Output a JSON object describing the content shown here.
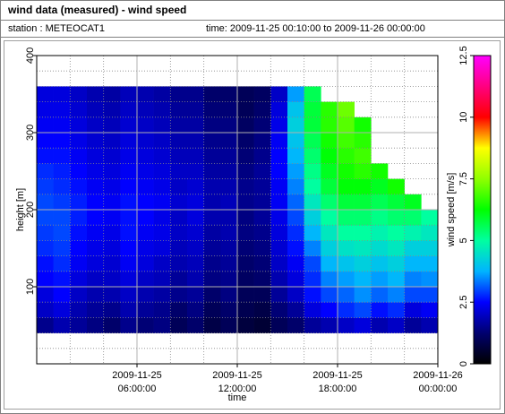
{
  "chart_data": {
    "type": "heatmap",
    "title": "wind data (measured) - wind speed",
    "station": "station : METEOCAT1",
    "time_range": "time: 2009-11-25 00:10:00 to 2009-11-26 00:00:00",
    "xlabel": "time",
    "ylabel": "height [m]",
    "colorbar_label": "wind speed [m/s]",
    "xlim": [
      "2009-11-25T00:00:00",
      "2009-11-26T00:00:00"
    ],
    "xticks": [
      {
        "value": "2009-11-25T06:00:00",
        "label": [
          "2009-11-25",
          "06:00:00"
        ]
      },
      {
        "value": "2009-11-25T12:00:00",
        "label": [
          "2009-11-25",
          "12:00:00"
        ]
      },
      {
        "value": "2009-11-25T18:00:00",
        "label": [
          "2009-11-25",
          "18:00:00"
        ]
      },
      {
        "value": "2009-11-26T00:00:00",
        "label": [
          "2009-11-26",
          "00:00:00"
        ]
      }
    ],
    "minor_xticks": [
      "2009-11-25T02:00:00",
      "2009-11-25T04:00:00",
      "2009-11-25T08:00:00",
      "2009-11-25T10:00:00",
      "2009-11-25T14:00:00",
      "2009-11-25T16:00:00",
      "2009-11-25T20:00:00",
      "2009-11-25T22:00:00"
    ],
    "ylim": [
      0,
      400
    ],
    "yticks": [
      100,
      200,
      300,
      400
    ],
    "minor_yticks": [
      20,
      40,
      60,
      80,
      120,
      140,
      160,
      180,
      220,
      240,
      260,
      280,
      320,
      340,
      360,
      380
    ],
    "clim": [
      0,
      12.5
    ],
    "cticks": [
      0,
      2.5,
      5,
      7.5,
      10,
      12.5
    ],
    "colorscale": [
      [
        0,
        "#000000"
      ],
      [
        1.2,
        "#00006a"
      ],
      [
        2.5,
        "#0000ff"
      ],
      [
        3.75,
        "#00b4ff"
      ],
      [
        5,
        "#00ffa0"
      ],
      [
        6.25,
        "#00ff00"
      ],
      [
        7.5,
        "#90ff00"
      ],
      [
        8.75,
        "#ffff00"
      ],
      [
        10,
        "#ff0000"
      ],
      [
        11.25,
        "#ff0080"
      ],
      [
        12.5,
        "#ff00ff"
      ]
    ],
    "x_edges": [
      "2009-11-25T00:00:00",
      "2009-11-25T01:00:00",
      "2009-11-25T02:00:00",
      "2009-11-25T03:00:00",
      "2009-11-25T04:00:00",
      "2009-11-25T05:00:00",
      "2009-11-25T06:00:00",
      "2009-11-25T07:00:00",
      "2009-11-25T08:00:00",
      "2009-11-25T09:00:00",
      "2009-11-25T10:00:00",
      "2009-11-25T11:00:00",
      "2009-11-25T12:00:00",
      "2009-11-25T13:00:00",
      "2009-11-25T14:00:00",
      "2009-11-25T15:00:00",
      "2009-11-25T16:00:00",
      "2009-11-25T17:00:00",
      "2009-11-25T18:00:00",
      "2009-11-25T19:00:00",
      "2009-11-25T20:00:00",
      "2009-11-25T21:00:00",
      "2009-11-25T22:00:00",
      "2009-11-25T23:00:00",
      "2009-11-26T00:00:00"
    ],
    "y_edges": [
      40,
      60,
      80,
      100,
      120,
      140,
      160,
      180,
      200,
      220,
      240,
      260,
      280,
      300,
      320,
      340,
      360
    ],
    "values": [
      [
        1.5,
        1.8,
        1.6,
        1.4,
        1.2,
        1.5,
        1.3,
        1.4,
        1.0,
        1.2,
        0.8,
        1.0,
        0.7,
        0.6,
        1.0,
        1.2,
        1.6,
        1.8,
        2.0,
        2.2,
        1.8,
        2.0,
        1.6,
        1.8
      ],
      [
        2.0,
        2.2,
        1.8,
        1.6,
        1.5,
        1.8,
        1.6,
        1.5,
        1.2,
        1.4,
        1.0,
        1.2,
        0.9,
        0.8,
        1.3,
        1.6,
        2.2,
        2.5,
        2.8,
        3.0,
        2.6,
        2.8,
        2.2,
        2.4
      ],
      [
        2.2,
        2.5,
        2.0,
        1.8,
        1.8,
        2.0,
        1.8,
        1.7,
        1.5,
        1.6,
        1.2,
        1.4,
        1.0,
        1.0,
        1.6,
        2.0,
        2.6,
        3.0,
        3.2,
        3.5,
        3.2,
        3.4,
        3.0,
        3.0
      ],
      [
        2.5,
        2.6,
        2.2,
        2.0,
        2.0,
        2.2,
        2.0,
        1.9,
        1.6,
        1.8,
        1.4,
        1.5,
        1.1,
        1.2,
        1.8,
        2.2,
        2.8,
        3.4,
        3.6,
        3.8,
        3.6,
        3.8,
        3.4,
        3.5
      ],
      [
        2.6,
        2.8,
        2.4,
        2.2,
        2.1,
        2.4,
        2.2,
        2.0,
        1.8,
        1.9,
        1.5,
        1.6,
        1.2,
        1.3,
        2.0,
        2.4,
        3.0,
        3.8,
        4.0,
        4.2,
        4.0,
        4.2,
        3.8,
        3.8
      ],
      [
        2.8,
        2.9,
        2.5,
        2.3,
        2.2,
        2.5,
        2.3,
        2.2,
        1.9,
        2.0,
        1.6,
        1.7,
        1.3,
        1.4,
        2.1,
        2.6,
        3.4,
        4.2,
        4.5,
        4.6,
        4.4,
        4.6,
        4.2,
        4.2
      ],
      [
        2.9,
        3.0,
        2.6,
        2.4,
        2.3,
        2.6,
        2.4,
        2.3,
        2.0,
        2.1,
        1.7,
        1.8,
        1.4,
        1.5,
        2.2,
        2.8,
        3.8,
        4.6,
        5.0,
        5.0,
        4.8,
        5.0,
        4.8,
        4.6
      ],
      [
        3.0,
        3.0,
        2.7,
        2.5,
        2.4,
        2.6,
        2.5,
        2.3,
        2.0,
        2.2,
        1.8,
        1.8,
        1.4,
        1.6,
        2.3,
        3.0,
        4.2,
        5.0,
        5.4,
        5.4,
        5.2,
        5.4,
        5.4,
        5.0
      ],
      [
        3.0,
        2.9,
        2.7,
        2.5,
        2.4,
        2.6,
        2.5,
        2.4,
        2.1,
        2.2,
        1.8,
        1.9,
        1.5,
        1.6,
        2.4,
        3.2,
        4.6,
        5.4,
        5.8,
        5.8,
        5.6,
        5.8,
        6.0,
        null
      ],
      [
        2.9,
        2.8,
        2.6,
        2.4,
        2.3,
        2.5,
        2.4,
        2.3,
        2.0,
        2.1,
        1.8,
        1.8,
        1.5,
        1.6,
        2.4,
        3.4,
        5.0,
        5.8,
        6.2,
        6.2,
        6.0,
        6.4,
        null,
        null
      ],
      [
        2.8,
        2.7,
        2.5,
        2.3,
        2.2,
        2.4,
        2.3,
        2.2,
        2.0,
        2.0,
        1.7,
        1.7,
        1.4,
        1.6,
        2.5,
        3.6,
        5.2,
        6.0,
        6.4,
        6.6,
        6.4,
        null,
        null,
        null
      ],
      [
        2.6,
        2.6,
        2.4,
        2.2,
        2.1,
        2.3,
        2.2,
        2.1,
        1.9,
        1.9,
        1.6,
        1.6,
        1.3,
        1.5,
        2.5,
        3.8,
        5.4,
        6.2,
        6.6,
        6.8,
        null,
        null,
        null,
        null
      ],
      [
        2.5,
        2.5,
        2.3,
        2.1,
        2.0,
        2.2,
        2.1,
        2.0,
        1.8,
        1.8,
        1.5,
        1.5,
        1.2,
        1.4,
        2.4,
        4.0,
        5.6,
        6.4,
        6.8,
        6.6,
        null,
        null,
        null,
        null
      ],
      [
        2.4,
        2.4,
        2.2,
        2.0,
        1.9,
        2.1,
        2.0,
        1.9,
        1.7,
        1.7,
        1.4,
        1.4,
        1.1,
        1.3,
        2.3,
        4.2,
        5.8,
        6.6,
        7.0,
        6.4,
        null,
        null,
        null,
        null
      ],
      [
        2.3,
        2.3,
        2.1,
        1.9,
        1.8,
        2.0,
        1.9,
        1.8,
        1.6,
        1.6,
        1.3,
        1.3,
        1.0,
        1.2,
        2.2,
        4.0,
        5.8,
        6.6,
        7.2,
        null,
        null,
        null,
        null,
        null
      ],
      [
        2.2,
        2.2,
        2.0,
        1.8,
        1.7,
        1.9,
        1.8,
        1.7,
        1.5,
        1.5,
        1.2,
        1.2,
        1.0,
        1.1,
        2.0,
        3.6,
        5.6,
        null,
        null,
        null,
        null,
        null,
        null,
        null
      ]
    ]
  }
}
